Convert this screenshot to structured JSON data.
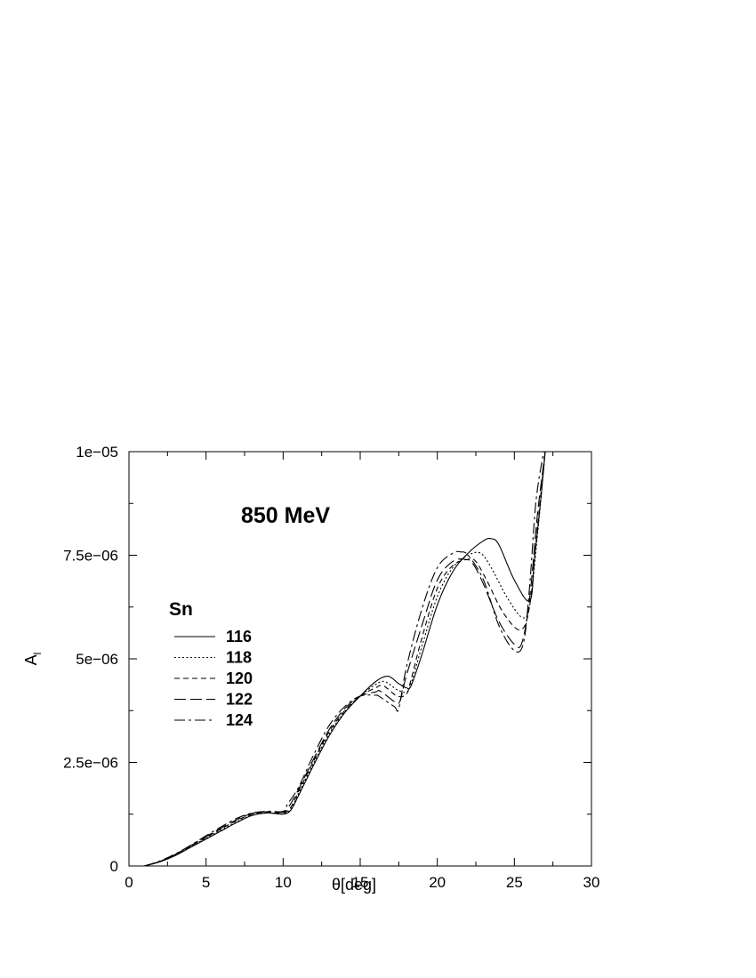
{
  "chart_data": {
    "type": "line",
    "annotation": "850 MeV",
    "xlabel": "θ[deg]",
    "ylabel_main": "A",
    "ylabel_sub": "l",
    "xlim": [
      0,
      30
    ],
    "ylim": [
      0,
      1e-05
    ],
    "x_ticks": [
      0,
      5,
      10,
      15,
      20,
      25,
      30
    ],
    "x_tick_labels": [
      "0",
      "5",
      "10",
      "15",
      "20",
      "25",
      "30"
    ],
    "y_ticks": [
      0,
      2.5e-06,
      5e-06,
      7.5e-06,
      1e-05
    ],
    "y_tick_labels": [
      "0",
      "2.5e−06",
      "5e−06",
      "7.5e−06",
      "1e−05"
    ],
    "grid": false,
    "legend_title": "Sn",
    "legend_position": "left-middle",
    "series": [
      {
        "name": "116",
        "dash": "",
        "x": [
          1,
          2,
          3,
          4,
          5,
          6,
          7,
          8,
          9,
          10,
          10.5,
          11,
          12,
          13,
          14,
          15,
          16,
          16.8,
          17.5,
          18,
          18.3,
          19,
          20,
          21,
          22,
          23,
          23.5,
          24,
          25,
          26,
          26.3,
          26.7,
          27
        ],
        "y": [
          0,
          1e-07,
          2.5e-07,
          4.5e-07,
          6.5e-07,
          8.5e-07,
          1.05e-06,
          1.22e-06,
          1.28e-06,
          1.25e-06,
          1.35e-06,
          1.7e-06,
          2.45e-06,
          3.15e-06,
          3.7e-06,
          4.1e-06,
          4.45e-06,
          4.58e-06,
          4.4e-06,
          4.3e-06,
          4.35e-06,
          5.1e-06,
          6.3e-06,
          7.1e-06,
          7.55e-06,
          7.85e-06,
          7.9e-06,
          7.75e-06,
          6.9e-06,
          6.4e-06,
          7.4e-06,
          8.8e-06,
          1e-05
        ]
      },
      {
        "name": "118",
        "dash": "2 2.5",
        "x": [
          1,
          2,
          3,
          4,
          5,
          6,
          7,
          8,
          9,
          10,
          10.5,
          11,
          12,
          13,
          14,
          15,
          16,
          16.6,
          17.4,
          18,
          18.3,
          19,
          20,
          21,
          22,
          22.8,
          23.5,
          24.5,
          25.5,
          26,
          26.5,
          27
        ],
        "y": [
          0,
          1e-07,
          2.6e-07,
          4.6e-07,
          6.7e-07,
          8.7e-07,
          1.07e-06,
          1.23e-06,
          1.28e-06,
          1.26e-06,
          1.38e-06,
          1.75e-06,
          2.5e-06,
          3.2e-06,
          3.72e-06,
          4.1e-06,
          4.38e-06,
          4.45e-06,
          4.25e-06,
          4.2e-06,
          4.4e-06,
          5.3e-06,
          6.5e-06,
          7.2e-06,
          7.5e-06,
          7.55e-06,
          7.2e-06,
          6.5e-06,
          6e-06,
          6.3e-06,
          8e-06,
          1e-05
        ]
      },
      {
        "name": "120",
        "dash": "6 4",
        "x": [
          1,
          2,
          3,
          4,
          5,
          6,
          7,
          8,
          9,
          10,
          10.5,
          11,
          12,
          13,
          14,
          15,
          16,
          16.5,
          17.4,
          18,
          18.3,
          19,
          20,
          21,
          22,
          22.5,
          23.2,
          24.3,
          25.4,
          26,
          26.5,
          27
        ],
        "y": [
          0,
          1.1e-07,
          2.7e-07,
          4.8e-07,
          6.9e-07,
          9e-07,
          1.1e-06,
          1.25e-06,
          1.3e-06,
          1.28e-06,
          1.42e-06,
          1.8e-06,
          2.55e-06,
          3.25e-06,
          3.75e-06,
          4.1e-06,
          4.3e-06,
          4.35e-06,
          4.1e-06,
          4.15e-06,
          4.5e-06,
          5.5e-06,
          6.7e-06,
          7.25e-06,
          7.4e-06,
          7.35e-06,
          6.9e-06,
          6.1e-06,
          5.7e-06,
          6.3e-06,
          8.2e-06,
          1e-05
        ]
      },
      {
        "name": "122",
        "dash": "13 5",
        "x": [
          1,
          2,
          3,
          4,
          5,
          6,
          7,
          8,
          9,
          10,
          10.4,
          11,
          12,
          13,
          14,
          15,
          16,
          16.3,
          17.3,
          17.6,
          18,
          19,
          20,
          21,
          21.8,
          22.3,
          23,
          24,
          25,
          25.5,
          26,
          26.5,
          27
        ],
        "y": [
          0,
          1.1e-07,
          2.8e-07,
          4.9e-07,
          7.1e-07,
          9.2e-07,
          1.12e-06,
          1.27e-06,
          1.31e-06,
          1.3e-06,
          1.45e-06,
          1.85e-06,
          2.6e-06,
          3.3e-06,
          3.8e-06,
          4.1e-06,
          4.2e-06,
          4.22e-06,
          3.95e-06,
          4e-06,
          4.6e-06,
          5.8e-06,
          6.9e-06,
          7.35e-06,
          7.4e-06,
          7.3e-06,
          6.8e-06,
          5.9e-06,
          5.35e-06,
          5.4e-06,
          6.5e-06,
          8.5e-06,
          1e-05
        ]
      },
      {
        "name": "124",
        "dash": "12 4 3 4",
        "x": [
          1,
          2,
          3,
          4,
          5,
          6,
          7,
          8,
          9,
          10,
          10.3,
          11,
          12,
          13,
          14,
          15,
          16,
          16.2,
          17.2,
          17.5,
          18,
          19,
          20,
          21,
          21.5,
          22,
          23,
          24,
          25,
          25.6,
          26,
          26.4,
          26.9
        ],
        "y": [
          0,
          1.2e-07,
          2.9e-07,
          5e-07,
          7.3e-07,
          9.5e-07,
          1.15e-06,
          1.28e-06,
          1.32e-06,
          1.32e-06,
          1.5e-06,
          1.9e-06,
          2.7e-06,
          3.4e-06,
          3.85e-06,
          4.1e-06,
          4.12e-06,
          4.1e-06,
          3.85e-06,
          3.8e-06,
          4.8e-06,
          6.2e-06,
          7.2e-06,
          7.55e-06,
          7.58e-06,
          7.5e-06,
          6.9e-06,
          5.8e-06,
          5.2e-06,
          5.4e-06,
          6.8e-06,
          8.8e-06,
          1e-05
        ]
      }
    ]
  }
}
